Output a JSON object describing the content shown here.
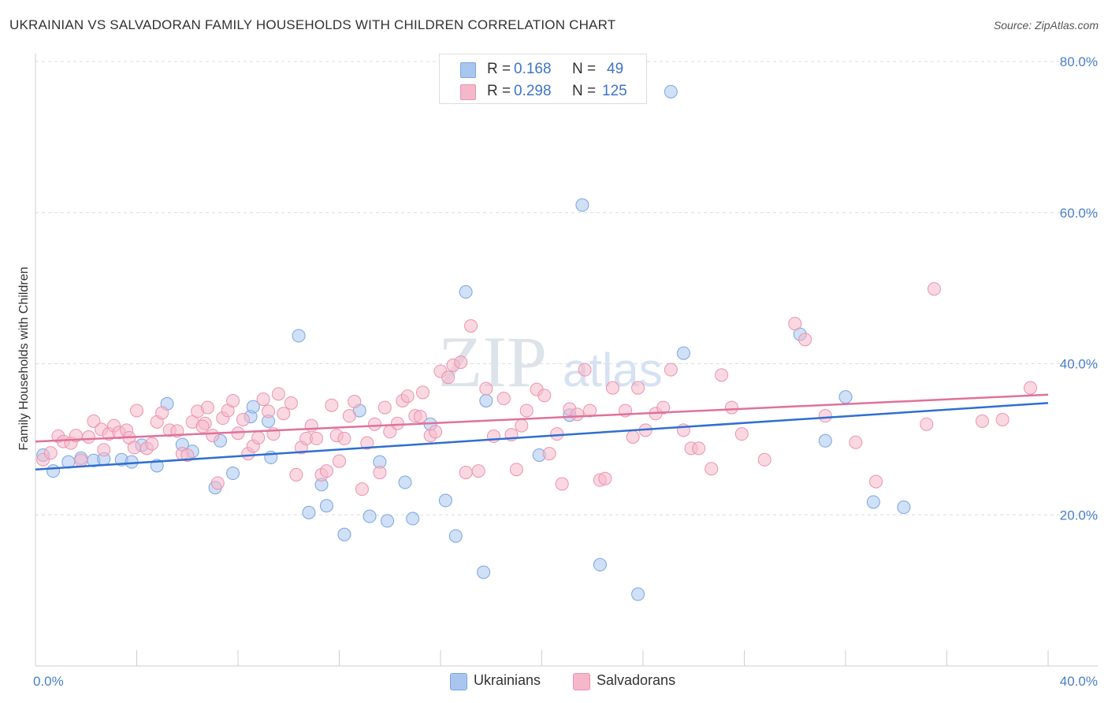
{
  "title": "UKRAINIAN VS SALVADORAN FAMILY HOUSEHOLDS WITH CHILDREN CORRELATION CHART",
  "source": "Source: ZipAtlas.com",
  "watermark": {
    "zip": "ZIP",
    "atlas": "atlas"
  },
  "stats": [
    {
      "r_label": "R =",
      "r_value": "0.168",
      "n_label": "N =",
      "n_value": "49",
      "color": "#a9c6ef"
    },
    {
      "r_label": "R =",
      "r_value": "0.298",
      "n_label": "N =",
      "n_value": "125",
      "color": "#f5b8cb"
    }
  ],
  "legend": {
    "ukrainians": "Ukrainians",
    "salvadorans": "Salvadorans"
  },
  "chart_data": {
    "type": "scatter",
    "ylabel": "Family Households with Children",
    "xlim": [
      0,
      40
    ],
    "ylim": [
      0,
      80
    ],
    "x_tick_labels": [
      "0.0%",
      "40.0%"
    ],
    "y_ticks": [
      20,
      40,
      60,
      80
    ],
    "y_tick_labels": [
      "20.0%",
      "40.0%",
      "60.0%",
      "80.0%"
    ],
    "grid": "horizontal dashed",
    "legend_position": "bottom-center",
    "series": [
      {
        "name": "Ukrainians",
        "color": "#a9c6ef",
        "stroke": "#7aa5e0",
        "trend": [
          [
            0,
            26.0
          ],
          [
            40,
            34.8
          ]
        ],
        "trend_color": "#2f6fd0",
        "points": [
          [
            0.7,
            25.8
          ],
          [
            1.3,
            27.0
          ],
          [
            1.8,
            27.5
          ],
          [
            2.3,
            27.2
          ],
          [
            2.7,
            27.4
          ],
          [
            3.4,
            27.3
          ],
          [
            3.8,
            27.0
          ],
          [
            4.2,
            29.2
          ],
          [
            4.8,
            26.5
          ],
          [
            5.2,
            34.7
          ],
          [
            5.8,
            29.3
          ],
          [
            6.2,
            28.4
          ],
          [
            7.1,
            23.6
          ],
          [
            7.3,
            29.8
          ],
          [
            7.8,
            25.5
          ],
          [
            8.5,
            33.0
          ],
          [
            8.6,
            34.3
          ],
          [
            9.2,
            32.4
          ],
          [
            9.3,
            27.6
          ],
          [
            10.4,
            43.7
          ],
          [
            10.8,
            20.3
          ],
          [
            11.3,
            24.0
          ],
          [
            11.5,
            21.2
          ],
          [
            12.2,
            17.4
          ],
          [
            12.8,
            33.8
          ],
          [
            13.2,
            19.8
          ],
          [
            13.6,
            27.0
          ],
          [
            13.9,
            19.2
          ],
          [
            14.6,
            24.3
          ],
          [
            14.9,
            19.5
          ],
          [
            15.6,
            32.0
          ],
          [
            16.2,
            21.9
          ],
          [
            16.6,
            17.2
          ],
          [
            17.0,
            49.5
          ],
          [
            17.7,
            12.4
          ],
          [
            17.8,
            35.1
          ],
          [
            19.9,
            27.9
          ],
          [
            21.1,
            33.2
          ],
          [
            21.6,
            61.0
          ],
          [
            22.3,
            13.4
          ],
          [
            23.8,
            9.5
          ],
          [
            25.1,
            76.0
          ],
          [
            25.6,
            41.4
          ],
          [
            30.2,
            43.9
          ],
          [
            31.2,
            29.8
          ],
          [
            32.0,
            35.6
          ],
          [
            33.1,
            21.7
          ],
          [
            34.3,
            21.0
          ],
          [
            0.3,
            27.9
          ]
        ]
      },
      {
        "name": "Salvadorans",
        "color": "#f5b8cb",
        "stroke": "#eb93ae",
        "trend": [
          [
            0,
            29.7
          ],
          [
            40,
            35.9
          ]
        ],
        "trend_color": "#e0719a",
        "points": [
          [
            0.3,
            27.3
          ],
          [
            0.6,
            28.2
          ],
          [
            0.9,
            30.4
          ],
          [
            1.1,
            29.7
          ],
          [
            1.4,
            29.5
          ],
          [
            1.6,
            30.5
          ],
          [
            1.8,
            27.2
          ],
          [
            2.1,
            30.3
          ],
          [
            2.3,
            32.4
          ],
          [
            2.6,
            31.3
          ],
          [
            2.7,
            28.6
          ],
          [
            2.9,
            30.7
          ],
          [
            3.1,
            31.8
          ],
          [
            3.3,
            30.9
          ],
          [
            3.6,
            31.2
          ],
          [
            3.7,
            30.2
          ],
          [
            3.9,
            28.9
          ],
          [
            4.0,
            33.8
          ],
          [
            4.4,
            28.8
          ],
          [
            4.6,
            29.4
          ],
          [
            4.8,
            32.3
          ],
          [
            5.0,
            33.5
          ],
          [
            5.3,
            31.2
          ],
          [
            5.6,
            31.1
          ],
          [
            5.8,
            28.1
          ],
          [
            6.0,
            27.9
          ],
          [
            6.2,
            32.3
          ],
          [
            6.4,
            33.7
          ],
          [
            6.7,
            32.1
          ],
          [
            6.8,
            34.2
          ],
          [
            7.0,
            30.5
          ],
          [
            7.2,
            24.2
          ],
          [
            7.4,
            32.8
          ],
          [
            7.6,
            33.8
          ],
          [
            7.8,
            35.1
          ],
          [
            8.0,
            30.8
          ],
          [
            8.2,
            32.6
          ],
          [
            8.4,
            28.1
          ],
          [
            8.6,
            29.1
          ],
          [
            8.8,
            30.2
          ],
          [
            9.0,
            35.3
          ],
          [
            9.2,
            33.7
          ],
          [
            9.4,
            30.7
          ],
          [
            9.6,
            36.0
          ],
          [
            9.8,
            33.4
          ],
          [
            10.1,
            34.8
          ],
          [
            10.3,
            25.3
          ],
          [
            10.5,
            28.9
          ],
          [
            10.7,
            30.1
          ],
          [
            10.9,
            31.8
          ],
          [
            11.1,
            30.1
          ],
          [
            11.3,
            25.3
          ],
          [
            11.5,
            25.8
          ],
          [
            11.7,
            34.5
          ],
          [
            11.9,
            30.5
          ],
          [
            12.2,
            30.1
          ],
          [
            12.4,
            33.1
          ],
          [
            12.6,
            35.0
          ],
          [
            12.9,
            23.4
          ],
          [
            13.1,
            29.5
          ],
          [
            13.4,
            32.0
          ],
          [
            13.6,
            25.6
          ],
          [
            13.8,
            34.2
          ],
          [
            14.0,
            31.0
          ],
          [
            14.3,
            32.1
          ],
          [
            14.5,
            35.1
          ],
          [
            14.7,
            35.7
          ],
          [
            15.0,
            33.1
          ],
          [
            15.3,
            36.2
          ],
          [
            15.6,
            30.5
          ],
          [
            15.8,
            31.0
          ],
          [
            16.0,
            39.0
          ],
          [
            16.3,
            38.2
          ],
          [
            16.5,
            39.8
          ],
          [
            16.8,
            40.2
          ],
          [
            17.0,
            25.6
          ],
          [
            17.2,
            45.0
          ],
          [
            17.5,
            25.8
          ],
          [
            17.8,
            36.7
          ],
          [
            18.1,
            30.4
          ],
          [
            18.5,
            35.4
          ],
          [
            18.8,
            30.6
          ],
          [
            19.2,
            31.8
          ],
          [
            19.4,
            33.8
          ],
          [
            19.8,
            36.6
          ],
          [
            20.1,
            35.8
          ],
          [
            20.3,
            28.1
          ],
          [
            20.6,
            30.7
          ],
          [
            20.8,
            24.1
          ],
          [
            21.1,
            34.0
          ],
          [
            21.4,
            33.3
          ],
          [
            21.7,
            39.2
          ],
          [
            21.9,
            33.8
          ],
          [
            22.3,
            24.6
          ],
          [
            22.5,
            24.8
          ],
          [
            22.8,
            36.8
          ],
          [
            23.3,
            33.8
          ],
          [
            23.6,
            30.3
          ],
          [
            23.8,
            36.8
          ],
          [
            24.1,
            31.2
          ],
          [
            24.5,
            33.4
          ],
          [
            24.8,
            34.2
          ],
          [
            25.1,
            39.2
          ],
          [
            25.6,
            31.2
          ],
          [
            25.9,
            28.8
          ],
          [
            26.2,
            28.8
          ],
          [
            26.7,
            26.1
          ],
          [
            27.1,
            38.5
          ],
          [
            27.5,
            34.2
          ],
          [
            27.9,
            30.7
          ],
          [
            28.8,
            27.3
          ],
          [
            30.0,
            45.3
          ],
          [
            30.4,
            43.2
          ],
          [
            31.2,
            33.1
          ],
          [
            32.4,
            29.6
          ],
          [
            33.2,
            24.4
          ],
          [
            35.2,
            32.0
          ],
          [
            35.5,
            49.9
          ],
          [
            37.4,
            32.4
          ],
          [
            38.2,
            32.6
          ],
          [
            39.3,
            36.8
          ],
          [
            15.2,
            33.0
          ],
          [
            19.0,
            26.0
          ],
          [
            6.6,
            31.7
          ],
          [
            12.0,
            27.1
          ]
        ]
      }
    ]
  }
}
